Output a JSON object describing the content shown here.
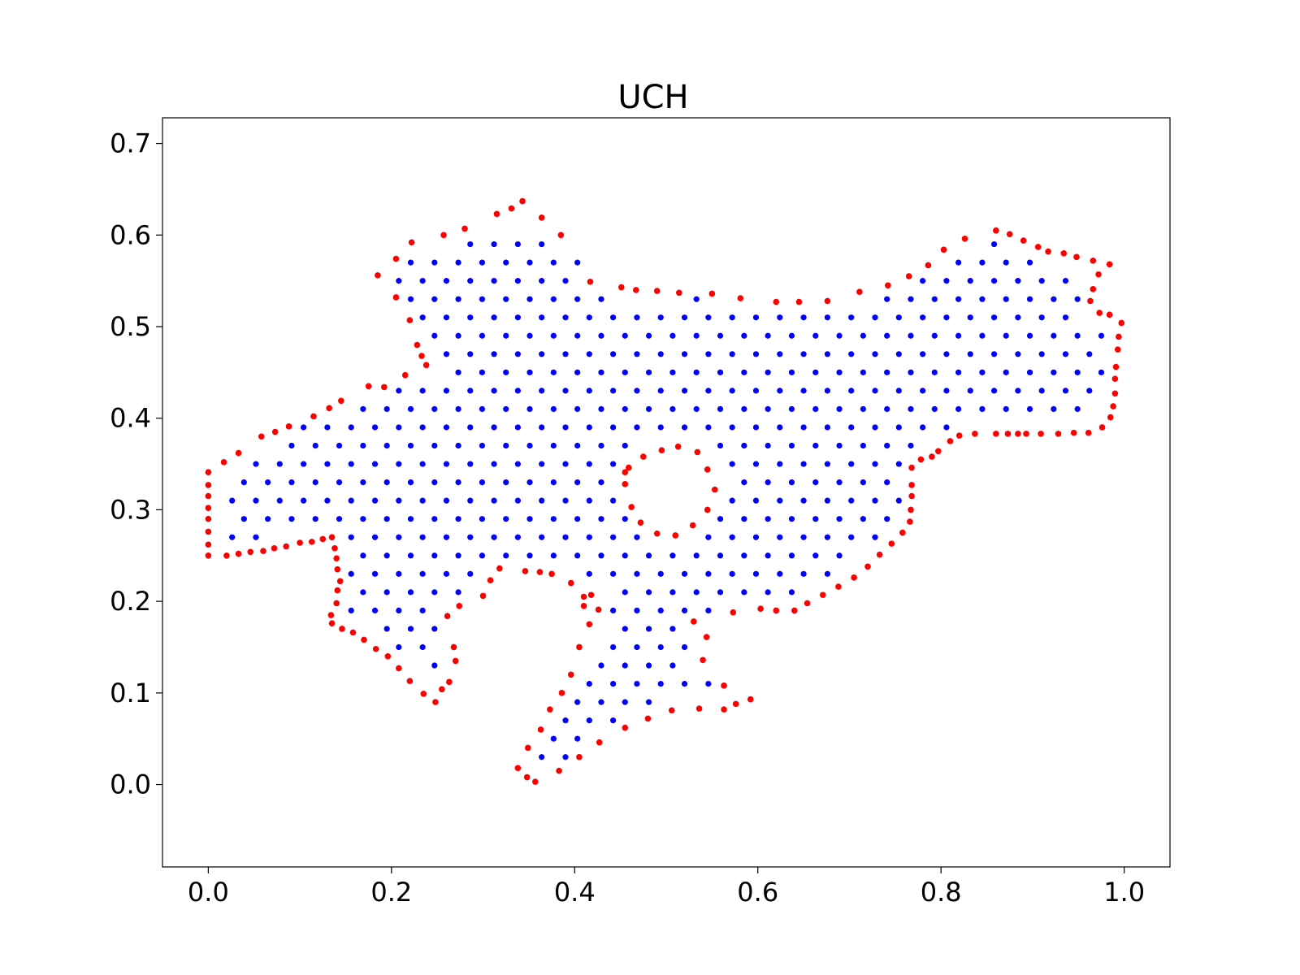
{
  "chart_data": {
    "type": "scatter",
    "title": "UCH",
    "xlabel": "",
    "ylabel": "",
    "xlim": [
      -0.05,
      1.05
    ],
    "ylim": [
      -0.09,
      0.728
    ],
    "xticks": [
      "0.0",
      "0.2",
      "0.4",
      "0.6",
      "0.8",
      "1.0"
    ],
    "yticks": [
      "0.0",
      "0.1",
      "0.2",
      "0.3",
      "0.4",
      "0.5",
      "0.6",
      "0.7"
    ],
    "grid": false,
    "legend": "none",
    "series": [
      {
        "color": "#ff0000",
        "points": [
          [
            0.185,
            0.556
          ],
          [
            0.205,
            0.574
          ],
          [
            0.222,
            0.592
          ],
          [
            0.257,
            0.6
          ],
          [
            0.28,
            0.607
          ],
          [
            0.315,
            0.623
          ],
          [
            0.331,
            0.629
          ],
          [
            0.343,
            0.637
          ],
          [
            0.364,
            0.619
          ],
          [
            0.385,
            0.6
          ],
          [
            0.417,
            0.549
          ],
          [
            0.451,
            0.543
          ],
          [
            0.467,
            0.54
          ],
          [
            0.49,
            0.539
          ],
          [
            0.514,
            0.537
          ],
          [
            0.55,
            0.536
          ],
          [
            0.581,
            0.531
          ],
          [
            0.62,
            0.527
          ],
          [
            0.645,
            0.527
          ],
          [
            0.676,
            0.528
          ],
          [
            0.711,
            0.538
          ],
          [
            0.742,
            0.545
          ],
          [
            0.765,
            0.555
          ],
          [
            0.786,
            0.567
          ],
          [
            0.803,
            0.584
          ],
          [
            0.826,
            0.596
          ],
          [
            0.86,
            0.605
          ],
          [
            0.875,
            0.601
          ],
          [
            0.89,
            0.594
          ],
          [
            0.906,
            0.587
          ],
          [
            0.917,
            0.582
          ],
          [
            0.934,
            0.58
          ],
          [
            0.948,
            0.576
          ],
          [
            0.966,
            0.572
          ],
          [
            0.984,
            0.568
          ],
          [
            0.972,
            0.557
          ],
          [
            0.966,
            0.541
          ],
          [
            0.963,
            0.528
          ],
          [
            0.973,
            0.515
          ],
          [
            0.984,
            0.513
          ],
          [
            0.997,
            0.504
          ],
          [
            0.994,
            0.489
          ],
          [
            0.993,
            0.475
          ],
          [
            0.991,
            0.456
          ],
          [
            0.99,
            0.443
          ],
          [
            0.99,
            0.427
          ],
          [
            0.988,
            0.413
          ],
          [
            0.985,
            0.401
          ],
          [
            0.976,
            0.39
          ],
          [
            0.961,
            0.384
          ],
          [
            0.945,
            0.384
          ],
          [
            0.928,
            0.383
          ],
          [
            0.909,
            0.383
          ],
          [
            0.893,
            0.383
          ],
          [
            0.884,
            0.383
          ],
          [
            0.873,
            0.383
          ],
          [
            0.86,
            0.383
          ],
          [
            0.837,
            0.383
          ],
          [
            0.82,
            0.381
          ],
          [
            0.81,
            0.375
          ],
          [
            0.797,
            0.364
          ],
          [
            0.79,
            0.358
          ],
          [
            0.778,
            0.355
          ],
          [
            0.768,
            0.346
          ],
          [
            0.768,
            0.327
          ],
          [
            0.768,
            0.315
          ],
          [
            0.767,
            0.3
          ],
          [
            0.766,
            0.287
          ],
          [
            0.758,
            0.275
          ],
          [
            0.746,
            0.263
          ],
          [
            0.733,
            0.251
          ],
          [
            0.72,
            0.238
          ],
          [
            0.705,
            0.226
          ],
          [
            0.688,
            0.216
          ],
          [
            0.671,
            0.207
          ],
          [
            0.654,
            0.198
          ],
          [
            0.64,
            0.19
          ],
          [
            0.62,
            0.19
          ],
          [
            0.603,
            0.192
          ],
          [
            0.573,
            0.188
          ],
          [
            0.53,
            0.178
          ],
          [
            0.544,
            0.161
          ],
          [
            0.54,
            0.136
          ],
          [
            0.563,
            0.108
          ],
          [
            0.536,
            0.083
          ],
          [
            0.563,
            0.082
          ],
          [
            0.576,
            0.088
          ],
          [
            0.592,
            0.093
          ],
          [
            0.506,
            0.081
          ],
          [
            0.48,
            0.072
          ],
          [
            0.455,
            0.062
          ],
          [
            0.427,
            0.046
          ],
          [
            0.405,
            0.03
          ],
          [
            0.383,
            0.015
          ],
          [
            0.357,
            0.003
          ],
          [
            0.348,
            0.008
          ],
          [
            0.338,
            0.018
          ],
          [
            0.349,
            0.04
          ],
          [
            0.363,
            0.06
          ],
          [
            0.373,
            0.082
          ],
          [
            0.386,
            0.1
          ],
          [
            0.396,
            0.12
          ],
          [
            0.405,
            0.15
          ],
          [
            0.416,
            0.175
          ],
          [
            0.426,
            0.191
          ],
          [
            0.418,
            0.207
          ],
          [
            0.41,
            0.205
          ],
          [
            0.396,
            0.22
          ],
          [
            0.375,
            0.23
          ],
          [
            0.362,
            0.232
          ],
          [
            0.346,
            0.233
          ],
          [
            0.318,
            0.236
          ],
          [
            0.308,
            0.223
          ],
          [
            0.3,
            0.206
          ],
          [
            0.274,
            0.195
          ],
          [
            0.261,
            0.184
          ],
          [
            0.268,
            0.15
          ],
          [
            0.27,
            0.135
          ],
          [
            0.263,
            0.112
          ],
          [
            0.255,
            0.104
          ],
          [
            0.248,
            0.09
          ],
          [
            0.235,
            0.099
          ],
          [
            0.22,
            0.113
          ],
          [
            0.208,
            0.127
          ],
          [
            0.196,
            0.14
          ],
          [
            0.183,
            0.148
          ],
          [
            0.17,
            0.158
          ],
          [
            0.158,
            0.166
          ],
          [
            0.146,
            0.17
          ],
          [
            0.135,
            0.176
          ],
          [
            0.134,
            0.185
          ],
          [
            0.14,
            0.198
          ],
          [
            0.141,
            0.212
          ],
          [
            0.144,
            0.222
          ],
          [
            0.141,
            0.235
          ],
          [
            0.14,
            0.247
          ],
          [
            0.138,
            0.258
          ],
          [
            0.135,
            0.27
          ],
          [
            0.125,
            0.268
          ],
          [
            0.113,
            0.265
          ],
          [
            0.1,
            0.264
          ],
          [
            0.085,
            0.26
          ],
          [
            0.072,
            0.258
          ],
          [
            0.06,
            0.255
          ],
          [
            0.046,
            0.254
          ],
          [
            0.033,
            0.252
          ],
          [
            0.02,
            0.25
          ],
          [
            0.0,
            0.25
          ],
          [
            0.0,
            0.262
          ],
          [
            0.0,
            0.276
          ],
          [
            0.0,
            0.29
          ],
          [
            0.0,
            0.302
          ],
          [
            0.0,
            0.315
          ],
          [
            0.0,
            0.327
          ],
          [
            0.0,
            0.341
          ],
          [
            0.017,
            0.352
          ],
          [
            0.033,
            0.362
          ],
          [
            0.058,
            0.38
          ],
          [
            0.073,
            0.385
          ],
          [
            0.088,
            0.391
          ],
          [
            0.115,
            0.402
          ],
          [
            0.132,
            0.411
          ],
          [
            0.145,
            0.419
          ],
          [
            0.175,
            0.435
          ],
          [
            0.192,
            0.434
          ],
          [
            0.215,
            0.447
          ],
          [
            0.238,
            0.458
          ],
          [
            0.233,
            0.468
          ],
          [
            0.228,
            0.48
          ],
          [
            0.22,
            0.507
          ],
          [
            0.205,
            0.532
          ],
          [
            0.41,
            0.195
          ],
          [
            0.455,
            0.328
          ],
          [
            0.455,
            0.341
          ],
          [
            0.462,
            0.303
          ],
          [
            0.472,
            0.286
          ],
          [
            0.49,
            0.274
          ],
          [
            0.51,
            0.272
          ],
          [
            0.529,
            0.283
          ],
          [
            0.545,
            0.3
          ],
          [
            0.553,
            0.322
          ],
          [
            0.545,
            0.344
          ],
          [
            0.534,
            0.363
          ],
          [
            0.513,
            0.369
          ],
          [
            0.495,
            0.365
          ],
          [
            0.475,
            0.358
          ],
          [
            0.459,
            0.346
          ]
        ]
      },
      {
        "color": "#0000ff",
        "grid": {
          "y_start": 0.03,
          "y_step": 0.02,
          "y_end": 0.59,
          "x_step": 0.026
        }
      }
    ]
  }
}
